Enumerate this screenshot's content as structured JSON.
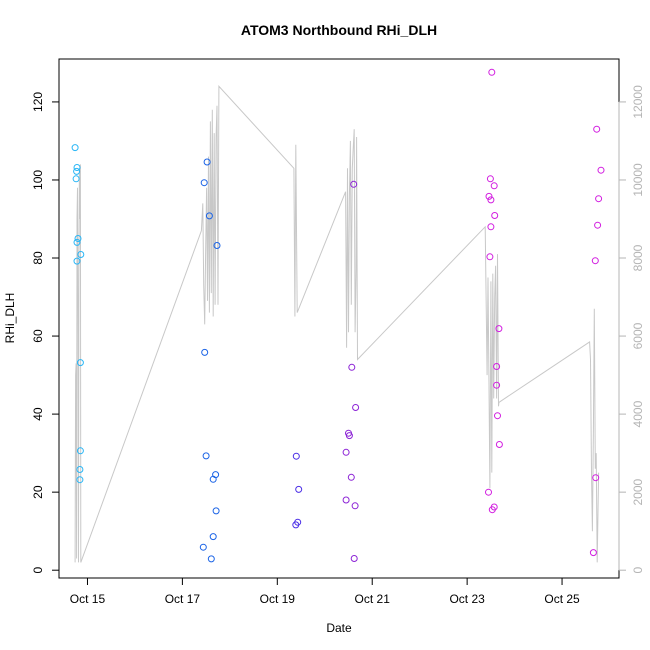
{
  "chart_data": {
    "type": "scatter",
    "title": "ATOM3 Northbound RHi_DLH",
    "xlabel": "Date",
    "ylabel": "RHi_DLH",
    "x_unit": "day of month (Oct)",
    "xlim": [
      14.4,
      26.2
    ],
    "ylim": [
      -2,
      131
    ],
    "x_ticks": [
      {
        "value": 15,
        "label": "Oct 15"
      },
      {
        "value": 17,
        "label": "Oct 17"
      },
      {
        "value": 19,
        "label": "Oct 19"
      },
      {
        "value": 21,
        "label": "Oct 21"
      },
      {
        "value": 23,
        "label": "Oct 23"
      },
      {
        "value": 25,
        "label": "Oct 25"
      }
    ],
    "y_ticks": [
      0,
      20,
      40,
      60,
      80,
      100,
      120
    ],
    "y2_ticks": [
      0,
      2000,
      4000,
      6000,
      8000,
      10000,
      12000
    ],
    "y2lim": [
      -200,
      13100
    ],
    "grid": false,
    "legend": "none",
    "colors": {
      "altitude_line": "#c8c8c8",
      "right_axis": "#b4b4b4",
      "frame": "#000000"
    },
    "series": [
      {
        "color": "#29b6f6",
        "points": [
          [
            14.74,
            108.3
          ],
          [
            14.78,
            103.2
          ],
          [
            14.77,
            102.2
          ],
          [
            14.76,
            100.3
          ],
          [
            14.8,
            85.0
          ],
          [
            14.78,
            84.0
          ],
          [
            14.86,
            80.9
          ],
          [
            14.78,
            79.2
          ],
          [
            14.85,
            53.2
          ],
          [
            14.85,
            30.6
          ],
          [
            14.84,
            25.8
          ],
          [
            14.84,
            23.2
          ]
        ]
      },
      {
        "color": "#1a63e6",
        "points": [
          [
            17.52,
            104.6
          ],
          [
            17.46,
            99.3
          ],
          [
            17.57,
            90.8
          ],
          [
            17.73,
            83.2
          ],
          [
            17.47,
            55.8
          ],
          [
            17.5,
            29.3
          ],
          [
            17.7,
            24.5
          ],
          [
            17.65,
            23.3
          ],
          [
            17.71,
            15.2
          ],
          [
            17.65,
            8.6
          ],
          [
            17.44,
            5.9
          ],
          [
            17.61,
            2.9
          ]
        ]
      },
      {
        "color": "#4a2ee6",
        "points": [
          [
            19.4,
            29.2
          ],
          [
            19.45,
            20.7
          ],
          [
            19.43,
            12.3
          ],
          [
            19.39,
            11.6
          ]
        ]
      },
      {
        "color": "#8c23d6",
        "points": [
          [
            20.61,
            98.9
          ],
          [
            20.57,
            52.0
          ],
          [
            20.65,
            41.7
          ],
          [
            20.5,
            35.1
          ],
          [
            20.52,
            34.5
          ],
          [
            20.45,
            30.2
          ],
          [
            20.56,
            23.8
          ],
          [
            20.45,
            18.0
          ],
          [
            20.64,
            16.5
          ],
          [
            20.62,
            3.0
          ]
        ]
      },
      {
        "color": "#d21fe0",
        "points": [
          [
            23.52,
            127.6
          ],
          [
            23.49,
            100.3
          ],
          [
            23.57,
            98.5
          ],
          [
            23.46,
            95.8
          ],
          [
            23.5,
            94.9
          ],
          [
            23.58,
            90.9
          ],
          [
            23.5,
            88.0
          ],
          [
            23.48,
            80.3
          ],
          [
            23.67,
            61.9
          ],
          [
            23.62,
            52.2
          ],
          [
            23.62,
            47.4
          ],
          [
            23.64,
            39.6
          ],
          [
            23.68,
            32.2
          ],
          [
            23.45,
            20.0
          ],
          [
            23.57,
            16.2
          ],
          [
            23.53,
            15.5
          ],
          [
            25.73,
            113.0
          ],
          [
            25.82,
            102.5
          ],
          [
            25.77,
            95.2
          ],
          [
            25.75,
            88.4
          ],
          [
            25.7,
            79.3
          ],
          [
            25.71,
            23.7
          ],
          [
            25.66,
            4.5
          ]
        ]
      }
    ],
    "altitude_line": {
      "axis": "right",
      "points": [
        [
          14.74,
          200
        ],
        [
          14.75,
          5000
        ],
        [
          14.76,
          5300
        ],
        [
          14.77,
          300
        ],
        [
          14.78,
          9000
        ],
        [
          14.79,
          9800
        ],
        [
          14.8,
          6000
        ],
        [
          14.81,
          200
        ],
        [
          14.82,
          7500
        ],
        [
          14.83,
          10300
        ],
        [
          14.84,
          9000
        ],
        [
          14.85,
          10400
        ],
        [
          14.86,
          200
        ],
        [
          17.4,
          8700
        ],
        [
          17.43,
          9400
        ],
        [
          17.45,
          7300
        ],
        [
          17.47,
          6300
        ],
        [
          17.49,
          8100
        ],
        [
          17.51,
          9800
        ],
        [
          17.53,
          6900
        ],
        [
          17.55,
          10600
        ],
        [
          17.57,
          6600
        ],
        [
          17.59,
          11500
        ],
        [
          17.61,
          7100
        ],
        [
          17.63,
          11800
        ],
        [
          17.65,
          6500
        ],
        [
          17.67,
          11200
        ],
        [
          17.69,
          6800
        ],
        [
          17.71,
          11100
        ],
        [
          17.73,
          11900
        ],
        [
          17.75,
          6800
        ],
        [
          17.77,
          12400
        ],
        [
          19.35,
          10300
        ],
        [
          19.37,
          6500
        ],
        [
          19.39,
          10900
        ],
        [
          19.42,
          6600
        ],
        [
          20.44,
          9700
        ],
        [
          20.46,
          5700
        ],
        [
          20.48,
          10300
        ],
        [
          20.5,
          6100
        ],
        [
          20.52,
          9600
        ],
        [
          20.54,
          11000
        ],
        [
          20.56,
          6800
        ],
        [
          20.58,
          10300
        ],
        [
          20.6,
          10800
        ],
        [
          20.62,
          11300
        ],
        [
          20.64,
          6100
        ],
        [
          20.66,
          7700
        ],
        [
          20.67,
          11100
        ],
        [
          20.69,
          5400
        ],
        [
          23.38,
          8800
        ],
        [
          23.42,
          5000
        ],
        [
          23.44,
          7500
        ],
        [
          23.46,
          4700
        ],
        [
          23.48,
          2100
        ],
        [
          23.5,
          7400
        ],
        [
          23.52,
          2500
        ],
        [
          23.54,
          7600
        ],
        [
          23.56,
          4400
        ],
        [
          23.58,
          7000
        ],
        [
          23.6,
          7800
        ],
        [
          23.62,
          4400
        ],
        [
          23.64,
          8100
        ],
        [
          23.66,
          4200
        ],
        [
          23.67,
          4300
        ],
        [
          25.58,
          5850
        ],
        [
          25.6,
          5400
        ],
        [
          25.62,
          2500
        ],
        [
          25.64,
          1000
        ],
        [
          25.66,
          3600
        ],
        [
          25.68,
          6700
        ],
        [
          25.7,
          2600
        ],
        [
          25.72,
          3000
        ],
        [
          25.74,
          200
        ],
        [
          25.77,
          2500
        ]
      ]
    }
  }
}
